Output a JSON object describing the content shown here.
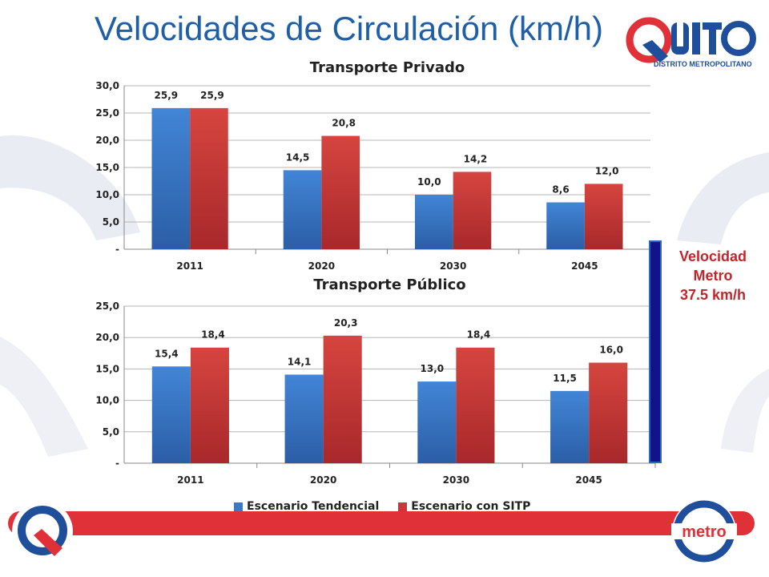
{
  "slide": {
    "title": "Velocidades de Circulación (km/h)"
  },
  "logo": {
    "brand": "QUITO",
    "subtitle": "DISTRITO METROPOLITANO",
    "metro_text": "metro"
  },
  "metro_note": {
    "line1": "Velocidad",
    "line2": "Metro",
    "line3": "37.5 km/h"
  },
  "colors": {
    "series1": "#3a78c9",
    "series2": "#c8383a",
    "title": "#1f5fa8",
    "accent_red": "#e03038",
    "metro_bar": "#12128a"
  },
  "legend": {
    "items": [
      "Escenario Tendencial",
      "Escenario con SITP"
    ]
  },
  "chart_data": [
    {
      "type": "bar",
      "title": "Transporte Privado",
      "categories": [
        "2011",
        "2020",
        "2030",
        "2045"
      ],
      "series": [
        {
          "name": "Escenario Tendencial",
          "values": [
            25.9,
            14.5,
            10.0,
            8.6
          ],
          "labels": [
            "25,9",
            "14,5",
            "10,0",
            "8,6"
          ]
        },
        {
          "name": "Escenario con SITP",
          "values": [
            25.9,
            20.8,
            14.2,
            12.0
          ],
          "labels": [
            "25,9",
            "20,8",
            "14,2",
            "12,0"
          ]
        }
      ],
      "yticks": [
        "-",
        "5,0",
        "10,0",
        "15,0",
        "20,0",
        "25,0",
        "30,0"
      ],
      "ylim": [
        0,
        30
      ],
      "grid": true
    },
    {
      "type": "bar",
      "title": "Transporte Público",
      "categories": [
        "2011",
        "2020",
        "2030",
        "2045"
      ],
      "series": [
        {
          "name": "Escenario Tendencial",
          "values": [
            15.4,
            14.1,
            13.0,
            11.5
          ],
          "labels": [
            "15,4",
            "14,1",
            "13,0",
            "11,5"
          ]
        },
        {
          "name": "Escenario con SITP",
          "values": [
            18.4,
            20.3,
            18.4,
            16.0
          ],
          "labels": [
            "18,4",
            "20,3",
            "18,4",
            "16,0"
          ]
        }
      ],
      "yticks": [
        "-",
        "5,0",
        "10,0",
        "15,0",
        "20,0",
        "25,0"
      ],
      "ylim": [
        0,
        25
      ],
      "grid": true
    }
  ]
}
